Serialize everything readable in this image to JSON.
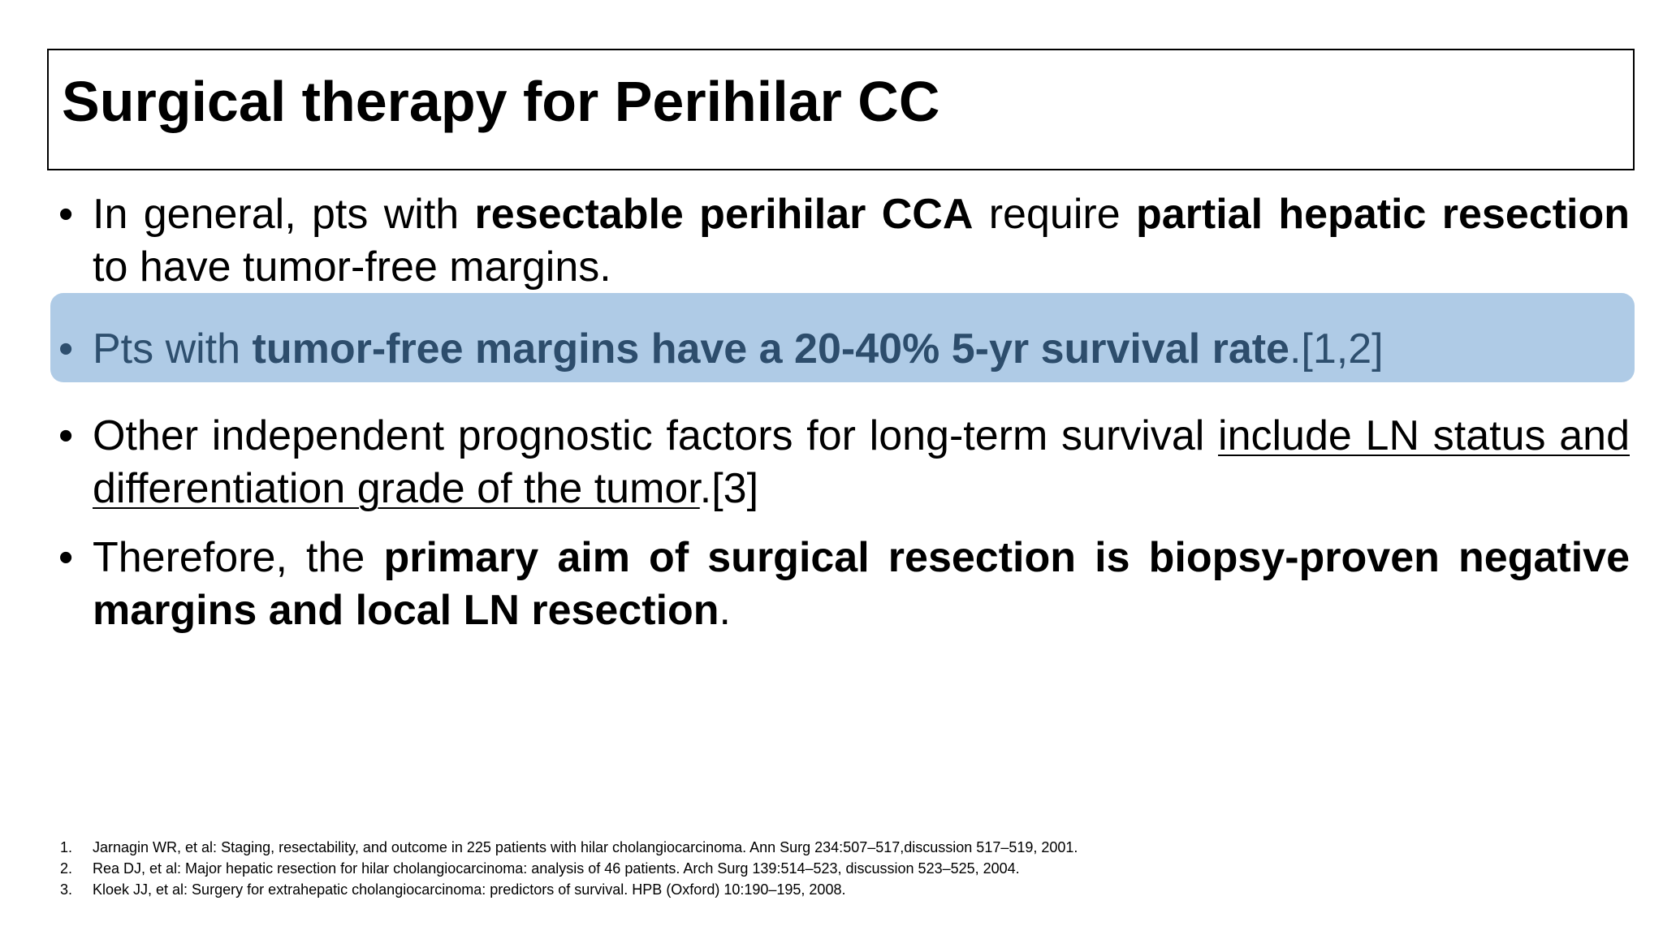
{
  "slide": {
    "title": "Surgical therapy for Perihilar CC",
    "bullet_glyph": "•",
    "bullets": [
      {
        "pre": "In general, pts with ",
        "bold1": "resectable perihilar CCA",
        "mid": " require ",
        "bold2": "partial hepatic resection",
        "post": " to have tumor-free margins."
      },
      {
        "pre": "Pts with ",
        "bold": "tumor-free margins have a 20-40% 5-yr survival rate",
        "post": ".[1,2]",
        "highlight_color": "#afcbe6"
      },
      {
        "pre": "Other independent prognostic factors for long-term survival ",
        "underlined": "include LN status and differentiation grade of the tumor",
        "post": ".[3]"
      },
      {
        "pre": "Therefore, the ",
        "bold": "primary aim of surgical resection is biopsy-proven negative margins and local LN resection",
        "post": "."
      }
    ],
    "references": [
      {
        "num": "1.",
        "text": "Jarnagin WR, et al: Staging, resectability, and outcome in 225 patients with hilar cholangiocarcinoma. Ann Surg 234:507–517,discussion 517–519, 2001."
      },
      {
        "num": "2.",
        "text": "Rea DJ, et al: Major hepatic resection for hilar cholangiocarcinoma: analysis of 46 patients. Arch Surg 139:514–523, discussion 523–525, 2004."
      },
      {
        "num": "3.",
        "text": "Kloek JJ, et al: Surgery for extrahepatic cholangiocarcinoma: predictors of survival. HPB (Oxford) 10:190–195, 2008."
      }
    ]
  }
}
